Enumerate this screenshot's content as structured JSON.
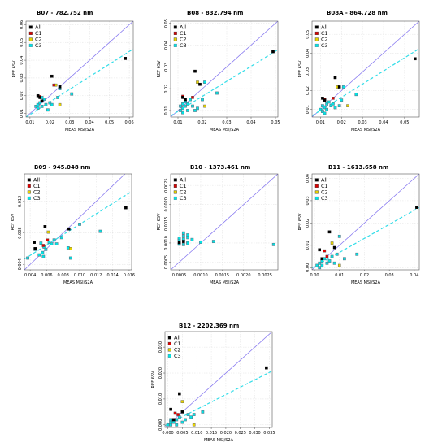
{
  "axis_labels": {
    "x": "MEAS MSI/S2A",
    "y": "REF 6SV"
  },
  "legend": [
    "All",
    "C1",
    "C2",
    "C3"
  ],
  "colors": {
    "All": "#000000",
    "C1": "#dd0000",
    "C2": "#e6d200",
    "C3": "#00e5e5",
    "identity_line": "#8a7cf0",
    "fit_line": "#33dde8",
    "square_outline": "#5a7a8a"
  },
  "chart_data": [
    {
      "type": "scatter",
      "title": "B07 - 782.752 nm",
      "xlabel": "MEAS MSI/S2A",
      "ylabel": "REF 6SV",
      "xlim": [
        0.008,
        0.062
      ],
      "ylim": [
        0.008,
        0.062
      ],
      "xticks": [
        "0.01",
        "0.02",
        "0.03",
        "0.04",
        "0.05",
        "0.06"
      ],
      "yticks": [
        "0.01",
        "0.02",
        "0.03",
        "0.04",
        "0.05",
        "0.06"
      ],
      "xtick_values": [
        0.01,
        0.02,
        0.03,
        0.04,
        0.05,
        0.06
      ],
      "ytick_values": [
        0.01,
        0.02,
        0.03,
        0.04,
        0.05,
        0.06
      ],
      "fit": {
        "slope": 0.71,
        "intercept": 0.0023
      },
      "series": [
        {
          "name": "All",
          "points": [
            [
              0.014,
              0.02
            ],
            [
              0.015,
              0.019
            ],
            [
              0.021,
              0.031
            ],
            [
              0.025,
              0.025
            ],
            [
              0.058,
              0.041
            ],
            [
              0.016,
              0.017
            ]
          ]
        },
        {
          "name": "C1",
          "points": [
            [
              0.015,
              0.0195
            ],
            [
              0.022,
              0.026
            ]
          ]
        },
        {
          "name": "C2",
          "points": [
            [
              0.023,
              0.026
            ],
            [
              0.025,
              0.015
            ]
          ]
        },
        {
          "name": "C3",
          "points": [
            [
              0.013,
              0.014
            ],
            [
              0.014,
              0.015
            ],
            [
              0.015,
              0.016
            ],
            [
              0.016,
              0.017
            ],
            [
              0.016,
              0.014
            ],
            [
              0.017,
              0.018
            ],
            [
              0.018,
              0.015
            ],
            [
              0.019,
              0.012
            ],
            [
              0.02,
              0.016
            ],
            [
              0.021,
              0.015
            ],
            [
              0.024,
              0.019
            ],
            [
              0.025,
              0.024
            ],
            [
              0.031,
              0.021
            ],
            [
              0.014,
              0.013
            ],
            [
              0.016,
              0.019
            ]
          ]
        }
      ]
    },
    {
      "type": "scatter",
      "title": "B08 - 832.794 nm",
      "xlabel": "MEAS MSI/S2A",
      "ylabel": "REF 6SV",
      "xlim": [
        0.007,
        0.051
      ],
      "ylim": [
        0.007,
        0.051
      ],
      "xticks": [
        "0.01",
        "0.02",
        "0.03",
        "0.04",
        "0.05"
      ],
      "yticks": [
        "0.01",
        "0.02",
        "0.03",
        "0.04",
        "0.05"
      ],
      "xtick_values": [
        0.01,
        0.02,
        0.03,
        0.04,
        0.05
      ],
      "ytick_values": [
        0.01,
        0.02,
        0.03,
        0.04,
        0.05
      ],
      "fit": {
        "slope": 0.69,
        "intercept": 0.0027
      },
      "series": [
        {
          "name": "All",
          "points": [
            [
              0.012,
              0.016
            ],
            [
              0.017,
              0.028
            ],
            [
              0.019,
              0.022
            ],
            [
              0.049,
              0.037
            ],
            [
              0.013,
              0.015
            ]
          ]
        },
        {
          "name": "C1",
          "points": [
            [
              0.012,
              0.0165
            ],
            [
              0.016,
              0.016
            ]
          ]
        },
        {
          "name": "C2",
          "points": [
            [
              0.018,
              0.023
            ],
            [
              0.021,
              0.012
            ]
          ]
        },
        {
          "name": "C3",
          "points": [
            [
              0.011,
              0.012
            ],
            [
              0.012,
              0.011
            ],
            [
              0.012,
              0.013
            ],
            [
              0.013,
              0.012
            ],
            [
              0.013,
              0.014
            ],
            [
              0.014,
              0.013
            ],
            [
              0.014,
              0.01
            ],
            [
              0.015,
              0.015
            ],
            [
              0.016,
              0.012
            ],
            [
              0.017,
              0.01
            ],
            [
              0.018,
              0.011
            ],
            [
              0.02,
              0.015
            ],
            [
              0.021,
              0.023
            ],
            [
              0.026,
              0.018
            ],
            [
              0.012,
              0.009
            ],
            [
              0.011,
              0.01
            ]
          ]
        }
      ]
    },
    {
      "type": "scatter",
      "title": "B08A - 864.728 nm",
      "xlabel": "MEAS MSI/S2A",
      "ylabel": "REF 6SV",
      "xlim": [
        0.006,
        0.057
      ],
      "ylim": [
        0.006,
        0.057
      ],
      "xticks": [
        "0.01",
        "0.02",
        "0.03",
        "0.04",
        "0.05"
      ],
      "yticks": [
        "0.01",
        "0.02",
        "0.03",
        "0.04",
        "0.05"
      ],
      "xtick_values": [
        0.01,
        0.02,
        0.03,
        0.04,
        0.05
      ],
      "ytick_values": [
        0.01,
        0.02,
        0.03,
        0.04,
        0.05
      ],
      "fit": {
        "slope": 0.7,
        "intercept": 0.0025
      },
      "series": [
        {
          "name": "All",
          "points": [
            [
              0.011,
              0.016
            ],
            [
              0.017,
              0.027
            ],
            [
              0.019,
              0.022
            ],
            [
              0.055,
              0.037
            ],
            [
              0.012,
              0.015
            ]
          ]
        },
        {
          "name": "C1",
          "points": [
            [
              0.012,
              0.0155
            ],
            [
              0.016,
              0.016
            ]
          ]
        },
        {
          "name": "C2",
          "points": [
            [
              0.018,
              0.022
            ],
            [
              0.023,
              0.012
            ]
          ]
        },
        {
          "name": "C3",
          "points": [
            [
              0.01,
              0.01
            ],
            [
              0.011,
              0.012
            ],
            [
              0.011,
              0.009
            ],
            [
              0.012,
              0.011
            ],
            [
              0.013,
              0.013
            ],
            [
              0.014,
              0.014
            ],
            [
              0.015,
              0.012
            ],
            [
              0.016,
              0.013
            ],
            [
              0.017,
              0.011
            ],
            [
              0.019,
              0.012
            ],
            [
              0.02,
              0.015
            ],
            [
              0.021,
              0.022
            ],
            [
              0.027,
              0.018
            ],
            [
              0.012,
              0.008
            ],
            [
              0.013,
              0.01
            ]
          ]
        }
      ]
    },
    {
      "type": "scatter",
      "title": "B09 - 945.048 nm",
      "xlabel": "MEAS MSI/S2A",
      "ylabel": "REF 6SV",
      "xlim": [
        0.0033,
        0.0163
      ],
      "ylim": [
        0.0033,
        0.0155
      ],
      "xticks": [
        "0.004",
        "0.006",
        "0.008",
        "0.010",
        "0.012",
        "0.014",
        "0.016"
      ],
      "yticks": [
        "0.004",
        "0.008",
        "0.012"
      ],
      "xtick_values": [
        0.004,
        0.006,
        0.008,
        0.01,
        0.012,
        0.014,
        0.016
      ],
      "ytick_values": [
        0.004,
        0.008,
        0.012
      ],
      "fit": {
        "slope": 0.66,
        "intercept": 0.0025
      },
      "series": [
        {
          "name": "All",
          "points": [
            [
              0.0045,
              0.0068
            ],
            [
              0.0058,
              0.0088
            ],
            [
              0.0087,
              0.0085
            ],
            [
              0.0156,
              0.0112
            ],
            [
              0.0046,
              0.006
            ]
          ]
        },
        {
          "name": "C1",
          "points": [
            [
              0.0056,
              0.0064
            ],
            [
              0.0061,
              0.0071
            ]
          ]
        },
        {
          "name": "C2",
          "points": [
            [
              0.0062,
              0.0081
            ],
            [
              0.0089,
              0.006
            ]
          ]
        },
        {
          "name": "C3",
          "points": [
            [
              0.0037,
              0.0048
            ],
            [
              0.0046,
              0.0059
            ],
            [
              0.0051,
              0.0052
            ],
            [
              0.0053,
              0.0067
            ],
            [
              0.0055,
              0.0055
            ],
            [
              0.0057,
              0.0062
            ],
            [
              0.0059,
              0.0059
            ],
            [
              0.0063,
              0.0068
            ],
            [
              0.0066,
              0.0066
            ],
            [
              0.0069,
              0.0071
            ],
            [
              0.0072,
              0.0066
            ],
            [
              0.0078,
              0.0074
            ],
            [
              0.0086,
              0.0061
            ],
            [
              0.0089,
              0.0048
            ],
            [
              0.01,
              0.0091
            ],
            [
              0.0125,
              0.0082
            ],
            [
              0.0056,
              0.005
            ]
          ]
        }
      ]
    },
    {
      "type": "scatter",
      "title": "B10 - 1373.461 nm",
      "xlabel": "MEAS MSI/S2A",
      "ylabel": "REF 6SV",
      "xlim": [
        0.0003,
        0.0028
      ],
      "ylim": [
        0.0003,
        0.0028
      ],
      "xticks": [
        "0.0005",
        "0.0010",
        "0.0015",
        "0.0020",
        "0.0025"
      ],
      "yticks": [
        "0.0005",
        "0.0010",
        "0.0015",
        "0.0020",
        "0.0025"
      ],
      "xtick_values": [
        0.0005,
        0.001,
        0.0015,
        0.002,
        0.0025
      ],
      "ytick_values": [
        0.0005,
        0.001,
        0.0015,
        0.002,
        0.0025
      ],
      "fit": null,
      "series": [
        {
          "name": "All",
          "points": [
            [
              0.0005,
              0.00101
            ],
            [
              0.0006,
              0.00104
            ]
          ]
        },
        {
          "name": "C1",
          "points": []
        },
        {
          "name": "C2",
          "points": []
        },
        {
          "name": "C3",
          "points": [
            [
              0.0005,
              0.00108
            ],
            [
              0.0005,
              0.00112
            ],
            [
              0.0005,
              0.00097
            ],
            [
              0.0006,
              0.00118
            ],
            [
              0.0006,
              0.00126
            ],
            [
              0.0006,
              0.0011
            ],
            [
              0.0006,
              0.00096
            ],
            [
              0.0007,
              0.00102
            ],
            [
              0.0007,
              0.00114
            ],
            [
              0.0007,
              0.00099
            ],
            [
              0.0008,
              0.00109
            ],
            [
              0.0007,
              0.00121
            ],
            [
              0.001,
              0.00102
            ],
            [
              0.0013,
              0.00104
            ],
            [
              0.0027,
              0.00096
            ]
          ]
        }
      ]
    },
    {
      "type": "scatter",
      "title": "B11 - 1613.658 nm",
      "xlabel": "MEAS MSI/S2A",
      "ylabel": "REF 6SV",
      "xlim": [
        -0.001,
        0.042
      ],
      "ylim": [
        -0.001,
        0.042
      ],
      "xticks": [
        "0.00",
        "0.01",
        "0.02",
        "0.03",
        "0.04"
      ],
      "yticks": [
        "0.00",
        "0.01",
        "0.02",
        "0.03",
        "0.04"
      ],
      "xtick_values": [
        0.0,
        0.01,
        0.02,
        0.03,
        0.04
      ],
      "ytick_values": [
        0.0,
        0.01,
        0.02,
        0.03,
        0.04
      ],
      "fit": {
        "slope": 0.63,
        "intercept": 0.0005
      },
      "series": [
        {
          "name": "All",
          "points": [
            [
              0.002,
              0.008
            ],
            [
              0.006,
              0.016
            ],
            [
              0.008,
              0.009
            ],
            [
              0.041,
              0.027
            ],
            [
              0.003,
              0.004
            ]
          ]
        },
        {
          "name": "C1",
          "points": [
            [
              0.004,
              0.0075
            ],
            [
              0.005,
              0.005
            ]
          ]
        },
        {
          "name": "C2",
          "points": [
            [
              0.007,
              0.011
            ],
            [
              0.01,
              0.001
            ]
          ]
        },
        {
          "name": "C3",
          "points": [
            [
              0.001,
              0.001
            ],
            [
              0.002,
              0.002
            ],
            [
              0.003,
              0.001
            ],
            [
              0.003,
              0.003
            ],
            [
              0.004,
              0.004
            ],
            [
              0.005,
              0.002
            ],
            [
              0.006,
              0.003
            ],
            [
              0.007,
              0.005
            ],
            [
              0.008,
              0.002
            ],
            [
              0.009,
              0.006
            ],
            [
              0.01,
              0.014
            ],
            [
              0.012,
              0.004
            ],
            [
              0.017,
              0.006
            ],
            [
              0.002,
              0.0
            ]
          ]
        }
      ]
    },
    {
      "type": "scatter",
      "title": "B12 - 2202.369 nm",
      "xlabel": "MEAS MSI/S2A",
      "ylabel": "REF 6SV",
      "xlim": [
        -0.001,
        0.036
      ],
      "ylim": [
        -0.001,
        0.036
      ],
      "xticks": [
        "0.000",
        "0.005",
        "0.010",
        "0.015",
        "0.020",
        "0.025",
        "0.030",
        "0.035"
      ],
      "yticks": [
        "0.000",
        "0.010",
        "0.020",
        "0.030"
      ],
      "xtick_values": [
        0.0,
        0.005,
        0.01,
        0.015,
        0.02,
        0.025,
        0.03,
        0.035
      ],
      "ytick_values": [
        0.0,
        0.01,
        0.02,
        0.03
      ],
      "fit": {
        "slope": 0.57,
        "intercept": 0.0003
      },
      "series": [
        {
          "name": "All",
          "points": [
            [
              0.001,
              0.006
            ],
            [
              0.004,
              0.012
            ],
            [
              0.005,
              0.005
            ],
            [
              0.034,
              0.022
            ],
            [
              0.002,
              0.002
            ]
          ]
        },
        {
          "name": "C1",
          "points": [
            [
              0.0025,
              0.0045
            ],
            [
              0.0035,
              0.004
            ]
          ]
        },
        {
          "name": "C2",
          "points": [
            [
              0.005,
              0.009
            ],
            [
              0.009,
              0.0
            ]
          ]
        },
        {
          "name": "C3",
          "points": [
            [
              0.0,
              0.0
            ],
            [
              0.001,
              0.001
            ],
            [
              0.001,
              0.0
            ],
            [
              0.002,
              0.001
            ],
            [
              0.002,
              0.002
            ],
            [
              0.003,
              0.002
            ],
            [
              0.003,
              0.0
            ],
            [
              0.004,
              0.003
            ],
            [
              0.005,
              0.001
            ],
            [
              0.006,
              0.002
            ],
            [
              0.007,
              0.004
            ],
            [
              0.008,
              0.003
            ],
            [
              0.009,
              0.004
            ],
            [
              0.012,
              0.005
            ],
            [
              0.001,
              0.002
            ]
          ]
        }
      ]
    }
  ]
}
